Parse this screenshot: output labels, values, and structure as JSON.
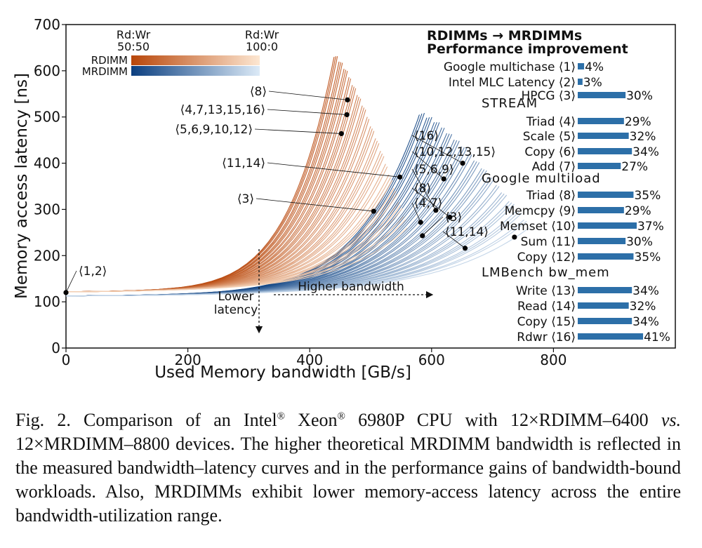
{
  "caption": {
    "prefix": "Fig. 2.  Comparison of an Intel",
    "reg1": "®",
    "xeon": " Xeon",
    "reg2": "®",
    "part1": " 6980P CPU with 12×RDIMM–6400 ",
    "vs": "vs.",
    "part2": " 12×MRDIMM–8800 devices. The higher theoretical MRDIMM bandwidth is reflected in the measured bandwidth–latency curves and in the performance gains of bandwidth-bound workloads. Also, MRDIMMs exhibit lower memory-access latency across the entire bandwidth-utilization range."
  },
  "colors": {
    "rdimm_dark": "#b8460a",
    "rdimm_light": "#fde7d2",
    "mrdimm_dark": "#0b3f80",
    "mrdimm_light": "#dceaf7",
    "bar": "#2c6fa8",
    "marker": "#000000"
  },
  "chart_data": [
    {
      "type": "line",
      "xlabel": "Used Memory bandwidth [GB/s]",
      "ylabel": "Memory access latency [ns]",
      "xlim": [
        0,
        1000
      ],
      "ylim": [
        0,
        700
      ],
      "xticks": [
        0,
        200,
        400,
        600,
        800
      ],
      "yticks": [
        0,
        100,
        200,
        300,
        400,
        500,
        600,
        700
      ],
      "grid": false,
      "legend": {
        "placement": "top-left",
        "left_label": "Rd:Wr\n50:50",
        "right_label": "Rd:Wr\n100:0",
        "series": [
          "RDIMM",
          "MRDIMM"
        ]
      },
      "series": [
        {
          "name": "RDIMM",
          "idle_latency": 122,
          "curves": 45,
          "knee_bw_range": [
            440,
            560
          ],
          "max_latency": 600
        },
        {
          "name": "MRDIMM",
          "idle_latency": 113,
          "curves": 45,
          "knee_bw_range": [
            580,
            760
          ],
          "max_latency": 475
        }
      ],
      "annotations": [
        {
          "text": "⟨1,2⟩",
          "x": 0,
          "y": 120
        },
        {
          "text": "⟨8⟩",
          "x": 462,
          "y": 537
        },
        {
          "text": "⟨4,7,13,15,16⟩",
          "x": 461,
          "y": 505
        },
        {
          "text": "⟨5,6,9,10,12⟩",
          "x": 452,
          "y": 464
        },
        {
          "text": "⟨11,14⟩",
          "x": 548,
          "y": 370
        },
        {
          "text": "⟨3⟩",
          "x": 505,
          "y": 296
        },
        {
          "text": "⟨16⟩",
          "x": 651,
          "y": 400
        },
        {
          "text": "⟨10,12,13,15⟩",
          "x": 620,
          "y": 366
        },
        {
          "text": "⟨5,6,9⟩",
          "x": 607,
          "y": 298
        },
        {
          "text": "⟨8⟩",
          "x": 630,
          "y": 283
        },
        {
          "text": "⟨4,7⟩",
          "x": 582,
          "y": 272
        },
        {
          "text": "⟨3⟩",
          "x": 585,
          "y": 243
        },
        {
          "text": "⟨11,14⟩",
          "x": 655,
          "y": 216
        },
        {
          "text": "",
          "x": 736,
          "y": 240
        }
      ],
      "arrows": [
        {
          "text": "Lower\nlatency",
          "direction": "down"
        },
        {
          "text": "Higher bandwidth",
          "direction": "right"
        }
      ]
    },
    {
      "type": "bar",
      "title": "RDIMMs → MRDIMMs\nPerformance improvement",
      "groups": [
        "STREAM",
        "Google multiload",
        "LMBench bw_mem"
      ],
      "categories": [
        "Google multichase ⟨1⟩",
        "Intel MLC Latency ⟨2⟩",
        "HPCG ⟨3⟩",
        "Triad ⟨4⟩",
        "Scale ⟨5⟩",
        "Copy ⟨6⟩",
        "Add ⟨7⟩",
        "Triad ⟨8⟩",
        "Memcpy ⟨9⟩",
        "Memset ⟨10⟩",
        "Sum ⟨11⟩",
        "Copy ⟨12⟩",
        "Write ⟨13⟩",
        "Read ⟨14⟩",
        "Copy ⟨15⟩",
        "Rdwr ⟨16⟩"
      ],
      "values": [
        4,
        3,
        30,
        29,
        32,
        34,
        27,
        35,
        29,
        37,
        30,
        35,
        34,
        32,
        34,
        41
      ],
      "data_labels": [
        "4%",
        "3%",
        "30%",
        "29%",
        "32%",
        "34%",
        "27%",
        "35%",
        "29%",
        "37%",
        "30%",
        "35%",
        "34%",
        "32%",
        "34%",
        "41%"
      ],
      "unit": "%"
    }
  ]
}
